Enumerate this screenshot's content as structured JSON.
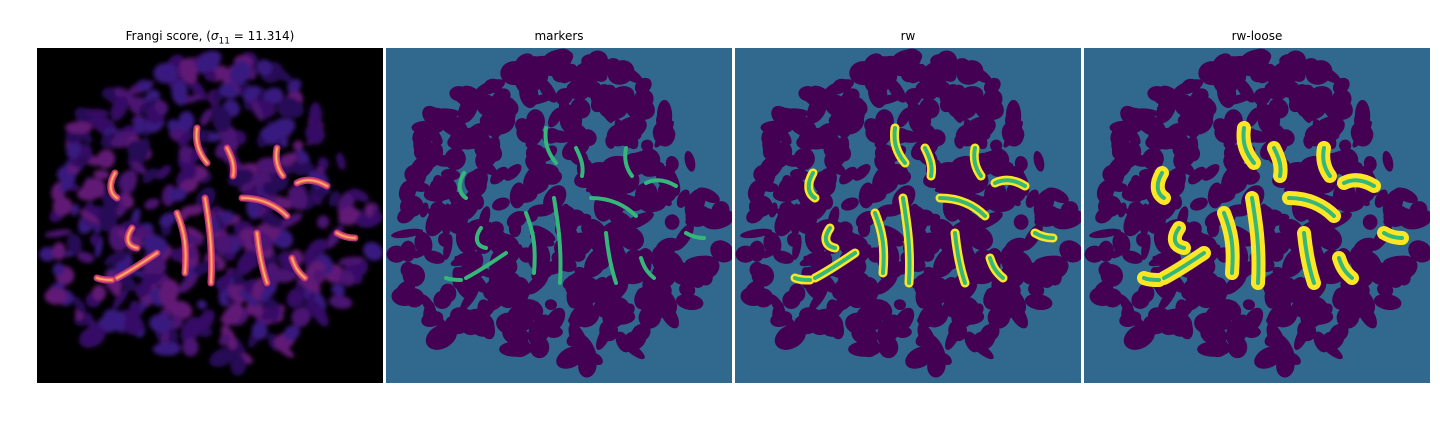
{
  "figure": {
    "panels": [
      {
        "title_prefix": "Frangi score, (",
        "title_sigma": "σ",
        "title_sub": "11",
        "title_value": " = 11.314)",
        "colormap": "magma-like",
        "background_color": "#000000"
      },
      {
        "title": "markers",
        "background_color": "#31688e",
        "blob_color": "#440154",
        "marker_color": "#35b779"
      },
      {
        "title": "rw",
        "background_color": "#31688e",
        "blob_color": "#440154",
        "marker_color": "#35b779",
        "highlight_color": "#fde725"
      },
      {
        "title": "rw-loose",
        "background_color": "#31688e",
        "blob_color": "#440154",
        "marker_color": "#35b779",
        "highlight_color": "#fde725"
      }
    ]
  }
}
